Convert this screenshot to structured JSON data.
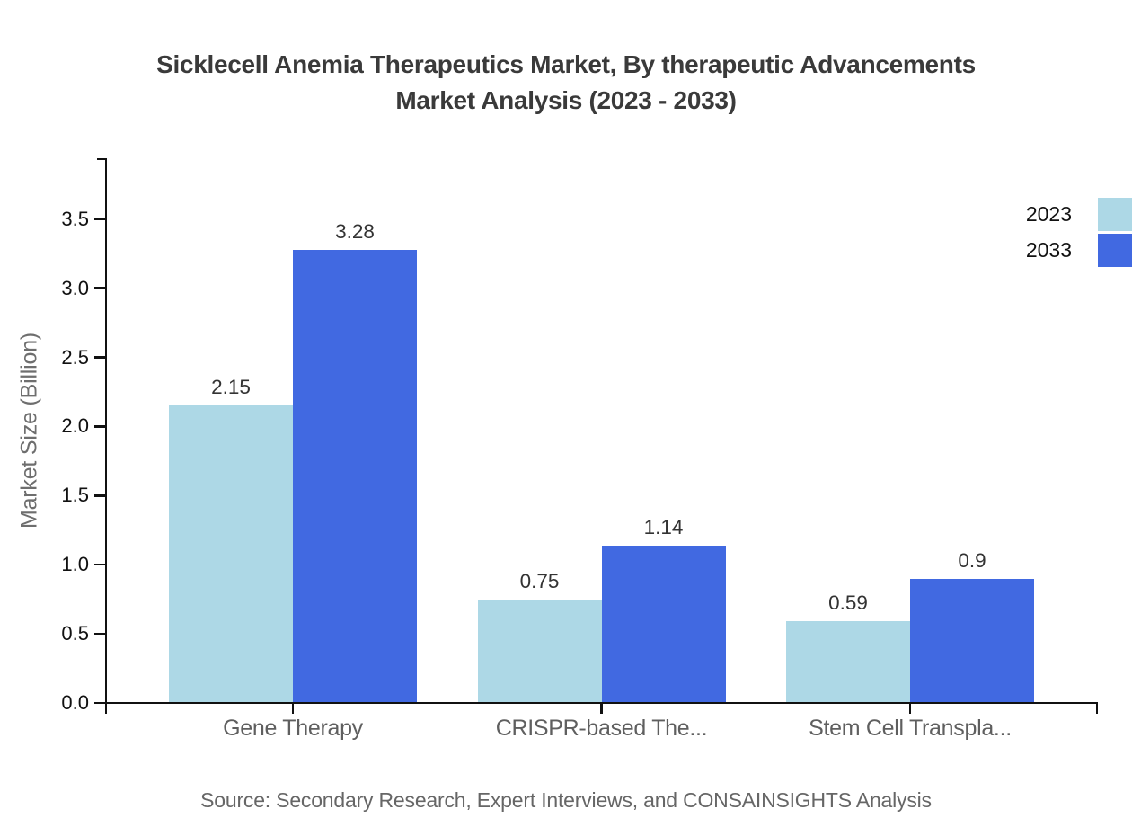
{
  "title": {
    "line1": "Sicklecell Anemia Therapeutics Market, By therapeutic Advancements",
    "line2": "Market Analysis (2023 - 2033)"
  },
  "source": "Source: Secondary Research, Expert Interviews, and CONSAINSIGHTS Analysis",
  "legend": {
    "items": [
      {
        "label": "2023",
        "color": "#ADD8E6"
      },
      {
        "label": "2033",
        "color": "#4169E1"
      }
    ]
  },
  "chart_data": {
    "type": "bar",
    "title": "Sicklecell Anemia Therapeutics Market, By therapeutic Advancements Market Analysis (2023 - 2033)",
    "categories": [
      "Gene Therapy",
      "CRISPR-based The...",
      "Stem Cell Transpla..."
    ],
    "series": [
      {
        "name": "2023",
        "color": "#ADD8E6",
        "values": [
          2.15,
          0.75,
          0.59
        ],
        "labels": [
          "2.15",
          "0.75",
          "0.59"
        ]
      },
      {
        "name": "2033",
        "color": "#4169E1",
        "values": [
          3.28,
          1.14,
          0.9
        ],
        "labels": [
          "3.28",
          "1.14",
          "0.9"
        ]
      }
    ],
    "xlabel": "",
    "ylabel": "Market Size (Billion)",
    "ylim": [
      0,
      3.93
    ],
    "yticks": [
      0,
      0.5,
      1,
      1.5,
      2,
      2.5,
      3,
      3.5
    ],
    "grid": false,
    "legend_position": "top-right",
    "background": "#ffffff",
    "axis_color": "#111111"
  }
}
